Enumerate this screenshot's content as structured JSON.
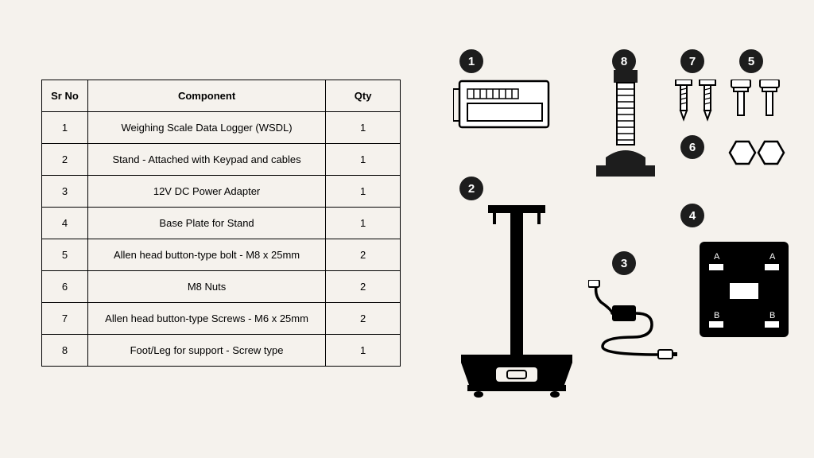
{
  "background_color": "#f5f2ed",
  "table": {
    "columns": [
      "Sr No",
      "Component",
      "Qty"
    ],
    "rows": [
      [
        "1",
        "Weighing Scale Data Logger (WSDL)",
        "1"
      ],
      [
        "2",
        "Stand - Attached with Keypad and cables",
        "1"
      ],
      [
        "3",
        "12V DC Power Adapter",
        "1"
      ],
      [
        "4",
        "Base Plate for Stand",
        "1"
      ],
      [
        "5",
        "Allen head button-type bolt - M8 x 25mm",
        "2"
      ],
      [
        "6",
        "M8 Nuts",
        "2"
      ],
      [
        "7",
        "Allen head button-type Screws - M6 x 25mm",
        "2"
      ],
      [
        "8",
        "Foot/Leg for support - Screw type",
        "1"
      ]
    ],
    "border_color": "#000000",
    "font_size": 13
  },
  "badges": {
    "color_bg": "#1d1d1d",
    "color_text": "#ffffff",
    "b1": "1",
    "b2": "2",
    "b3": "3",
    "b4": "4",
    "b5": "5",
    "b6": "6",
    "b7": "7",
    "b8": "8"
  },
  "baseplate": {
    "label_a": "A",
    "label_b": "B"
  },
  "illustration_stroke": "#000000",
  "illustration_fill_dark": "#000000"
}
